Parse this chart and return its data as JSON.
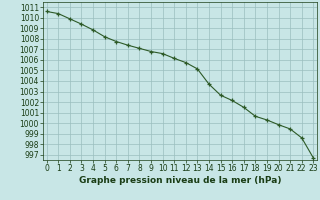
{
  "x": [
    0,
    1,
    2,
    3,
    4,
    5,
    6,
    7,
    8,
    9,
    10,
    11,
    12,
    13,
    14,
    15,
    16,
    17,
    18,
    19,
    20,
    21,
    22,
    23
  ],
  "y": [
    1010.6,
    1010.4,
    1009.9,
    1009.4,
    1008.85,
    1008.2,
    1007.75,
    1007.4,
    1007.1,
    1006.8,
    1006.6,
    1006.15,
    1005.75,
    1005.15,
    1003.7,
    1002.65,
    1002.15,
    1001.5,
    1000.65,
    1000.3,
    999.85,
    999.45,
    998.6,
    996.7
  ],
  "ylim_min": 996.5,
  "ylim_max": 1011.5,
  "yticks": [
    997,
    998,
    999,
    1000,
    1001,
    1002,
    1003,
    1004,
    1005,
    1006,
    1007,
    1008,
    1009,
    1010,
    1011
  ],
  "line_color": "#2d5a27",
  "marker_color": "#2d5a27",
  "bg_color": "#c8e6e6",
  "grid_color": "#9bbfbf",
  "xlabel": "Graphe pression niveau de la mer (hPa)",
  "xlabel_color": "#1a3d15",
  "tick_color": "#1a3d15",
  "tick_fontsize": 5.5,
  "xlabel_fontsize": 6.5
}
